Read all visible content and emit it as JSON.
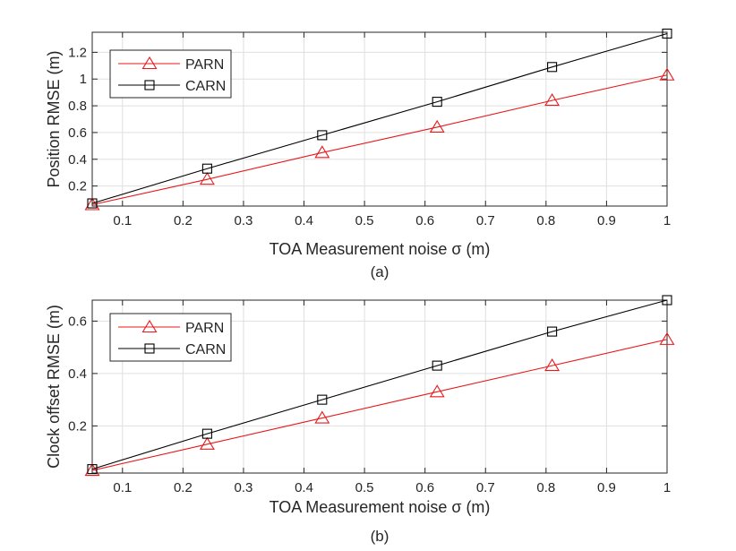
{
  "chart_data": [
    {
      "type": "line",
      "caption": "(a)",
      "xlabel": "TOA Measurement noise σ (m)",
      "ylabel": "Position RMSE (m)",
      "xlim": [
        0.05,
        1.0
      ],
      "ylim": [
        0.05,
        1.35
      ],
      "xticks": [
        0.1,
        0.2,
        0.3,
        0.4,
        0.5,
        0.6,
        0.7,
        0.8,
        0.9,
        1
      ],
      "xtick_labels": [
        "0.1",
        "0.2",
        "0.3",
        "0.4",
        "0.5",
        "0.6",
        "0.7",
        "0.8",
        "0.9",
        "1"
      ],
      "yticks": [
        0.2,
        0.4,
        0.6,
        0.8,
        1.0,
        1.2
      ],
      "ytick_labels": [
        "0.2",
        "0.4",
        "0.6",
        "0.8",
        "1",
        "1.2"
      ],
      "grid": true,
      "legend_position": "top-left",
      "x": [
        0.05,
        0.24,
        0.43,
        0.62,
        0.81,
        1.0
      ],
      "series": [
        {
          "name": "PARN",
          "marker": "triangle",
          "color": "#e8191b",
          "values": [
            0.06,
            0.25,
            0.45,
            0.64,
            0.84,
            1.03
          ]
        },
        {
          "name": "CARN",
          "marker": "square",
          "color": "#000000",
          "values": [
            0.07,
            0.33,
            0.58,
            0.83,
            1.09,
            1.34
          ]
        }
      ]
    },
    {
      "type": "line",
      "caption": "(b)",
      "xlabel": "TOA Measurement noise σ (m)",
      "ylabel": "Clock offset RMSE (m)",
      "xlim": [
        0.05,
        1.0
      ],
      "ylim": [
        0.02,
        0.68
      ],
      "xticks": [
        0.1,
        0.2,
        0.3,
        0.4,
        0.5,
        0.6,
        0.7,
        0.8,
        0.9,
        1
      ],
      "xtick_labels": [
        "0.1",
        "0.2",
        "0.3",
        "0.4",
        "0.5",
        "0.6",
        "0.7",
        "0.8",
        "0.9",
        "1"
      ],
      "yticks": [
        0.2,
        0.4,
        0.6
      ],
      "ytick_labels": [
        "0.2",
        "0.4",
        "0.6"
      ],
      "grid": true,
      "legend_position": "top-left",
      "x": [
        0.05,
        0.24,
        0.43,
        0.62,
        0.81,
        1.0
      ],
      "series": [
        {
          "name": "PARN",
          "marker": "triangle",
          "color": "#e8191b",
          "values": [
            0.03,
            0.13,
            0.23,
            0.33,
            0.43,
            0.53
          ]
        },
        {
          "name": "CARN",
          "marker": "square",
          "color": "#000000",
          "values": [
            0.035,
            0.17,
            0.3,
            0.43,
            0.56,
            0.68
          ]
        }
      ]
    }
  ]
}
